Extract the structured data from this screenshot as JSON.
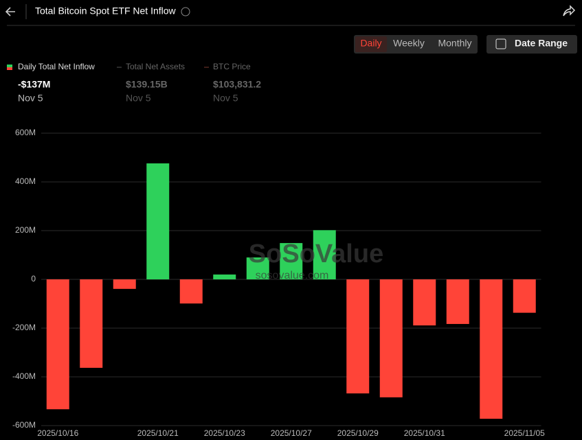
{
  "header": {
    "title": "Total Bitcoin Spot ETF Net Inflow"
  },
  "tabs": [
    "Daily",
    "Weekly",
    "Monthly"
  ],
  "date_range": "Date Range",
  "summary": [
    {
      "value": "-$137M",
      "date": "Nov 5"
    },
    {
      "label": "Total Net Assets",
      "value": "$139.15B",
      "date": "Nov 5"
    },
    {
      "label": "BTC Price",
      "value": "$103,831.2",
      "date": "Nov 5"
    }
  ],
  "watermark": [
    "SoSoValue",
    "sosovalue.com"
  ],
  "chart_data": {
    "type": "bar",
    "categories": [
      "2025/10/16",
      null,
      null,
      "2025/10/21",
      null,
      "2025/10/23",
      null,
      "2025/10/27",
      null,
      "2025/10/29",
      null,
      "2025/10/31",
      null,
      null,
      "2025/11/05"
    ],
    "series": [
      {
        "name": "Daily Total Net Inflow",
        "color": "#2ed15b",
        "negative_color": "#ff4438",
        "values": [
          -533,
          -363,
          -39,
          476,
          -99,
          20,
          90,
          149,
          202,
          -468,
          -484,
          -189,
          -183,
          -572,
          -137
        ]
      }
    ],
    "ylim": [
      -600,
      600
    ],
    "yticks": [
      {
        "value": -600,
        "label": "-600M"
      },
      {
        "value": -400,
        "label": "-400M"
      },
      {
        "value": -200,
        "label": "-200M"
      },
      0,
      {
        "value": 200,
        "label": "200M"
      },
      {
        "value": 400,
        "label": "400M"
      },
      {
        "value": 600,
        "label": "600M"
      }
    ],
    "grid": true
  }
}
